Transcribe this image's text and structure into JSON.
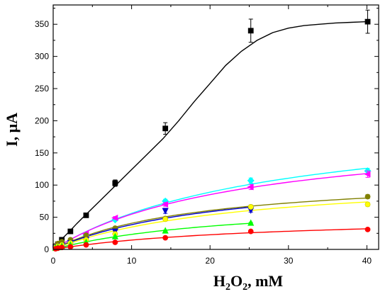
{
  "chart_data": {
    "type": "scatter",
    "ylabel": "I, μA",
    "xlabel_parts": {
      "main": "H",
      "sub1": "2",
      "mid": "O",
      "sub2": "2",
      "unit": ", mM"
    },
    "xlim": [
      0,
      41.5
    ],
    "ylim": [
      0,
      380
    ],
    "xticks": [
      0,
      10,
      20,
      30,
      40
    ],
    "yticks": [
      0,
      50,
      100,
      150,
      200,
      250,
      300,
      350
    ],
    "grid": false,
    "series": [
      {
        "color": "#000000",
        "marker": "square",
        "fit": "sigmoid",
        "x": [
          0.3,
          0.6,
          1.1,
          2.2,
          4.2,
          7.9,
          14.3,
          25.2,
          40.1
        ],
        "y": [
          5,
          8,
          15,
          28,
          53,
          103,
          188,
          340,
          354
        ],
        "err": [
          0,
          0,
          0,
          2,
          3,
          5,
          9,
          18,
          18
        ],
        "fit_x": [
          0,
          1,
          2,
          3,
          4,
          5,
          6,
          8,
          10,
          12,
          14,
          16,
          18,
          20,
          22,
          24,
          26,
          28,
          30,
          32,
          34,
          36,
          38,
          40
        ],
        "fit_y": [
          3,
          15,
          27,
          40,
          52,
          64,
          76,
          100,
          124,
          148,
          172,
          200,
          230,
          258,
          286,
          308,
          325,
          337,
          344,
          348,
          350,
          352,
          353,
          354
        ]
      },
      {
        "color": "#00ffff",
        "marker": "diamond",
        "fit": "saturation",
        "x": [
          0.3,
          0.6,
          1.1,
          2.2,
          4.2,
          7.9,
          14.3,
          25.2,
          40.1
        ],
        "y": [
          4,
          5,
          7,
          12,
          22,
          46,
          75,
          107,
          122
        ],
        "err": [
          0,
          0,
          0,
          0,
          0,
          2,
          3,
          4,
          4
        ]
      },
      {
        "color": "#ff00ff",
        "marker": "triangle-left",
        "fit": "saturation",
        "x": [
          0.3,
          0.6,
          1.1,
          2.2,
          4.2,
          7.9,
          14.3,
          25.2,
          40.1
        ],
        "y": [
          4,
          6,
          8,
          13,
          24,
          49,
          70,
          97,
          117
        ],
        "err": [
          0,
          0,
          0,
          0,
          0,
          2,
          3,
          4,
          5
        ]
      },
      {
        "color": "#808000",
        "marker": "circle",
        "fit": "saturation",
        "x": [
          0.3,
          0.6,
          1.1,
          2.2,
          4.2,
          7.9,
          14.3,
          25.2,
          40.1
        ],
        "y": [
          5,
          9,
          12,
          15,
          22,
          33,
          48,
          66,
          82
        ],
        "err": [
          0,
          0,
          0,
          0,
          0,
          0,
          2,
          3,
          3
        ]
      },
      {
        "color": "#0000cc",
        "marker": "triangle-down",
        "fit": "saturation",
        "x": [
          0.3,
          0.6,
          1.1,
          2.2,
          4.2,
          7.9,
          14.3,
          25.2
        ],
        "y": [
          3,
          4,
          6,
          10,
          15,
          28,
          60,
          61
        ],
        "err": [
          0,
          0,
          0,
          0,
          0,
          2,
          4,
          3
        ]
      },
      {
        "color": "#ffff00",
        "marker": "circle",
        "fit": "saturation",
        "x": [
          0.3,
          0.6,
          1.1,
          2.2,
          4.2,
          7.9,
          14.3,
          25.2,
          40.1
        ],
        "y": [
          3,
          5,
          7,
          10,
          15,
          24,
          47,
          66,
          70
        ],
        "err": [
          0,
          0,
          0,
          0,
          0,
          0,
          2,
          2,
          3
        ]
      },
      {
        "color": "#00ff00",
        "marker": "triangle-up",
        "fit": "saturation",
        "x": [
          0.3,
          0.6,
          1.1,
          2.2,
          4.2,
          7.9,
          14.3,
          25.2
        ],
        "y": [
          2,
          3,
          5,
          7,
          11,
          20,
          29,
          41
        ],
        "err": [
          0,
          0,
          0,
          0,
          0,
          0,
          1,
          1
        ]
      },
      {
        "color": "#ff0000",
        "marker": "circle",
        "fit": "saturation",
        "x": [
          0.3,
          0.6,
          1.1,
          2.2,
          4.2,
          7.9,
          14.3,
          25.2,
          40.1
        ],
        "y": [
          1,
          2,
          3,
          4,
          7,
          11,
          18,
          28,
          31
        ],
        "err": [
          0,
          0,
          0,
          0,
          0,
          0,
          0,
          1,
          1
        ]
      }
    ]
  }
}
